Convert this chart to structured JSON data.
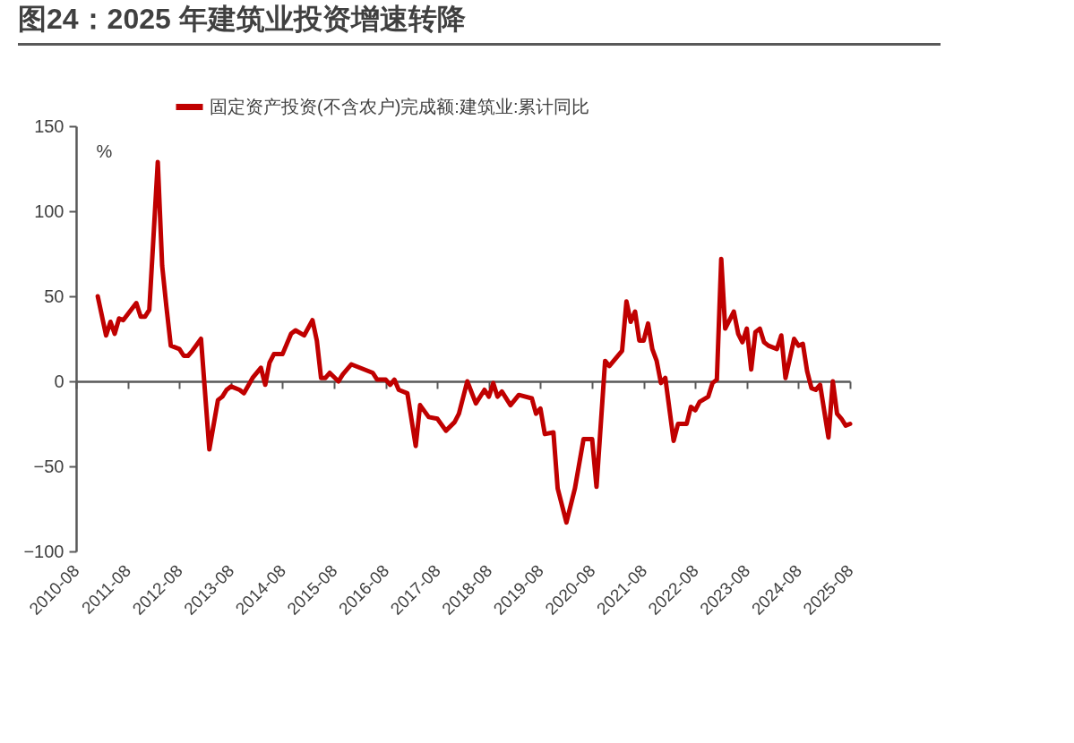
{
  "chart_data": {
    "type": "line",
    "title": "图24：2025 年建筑业投资增速转降",
    "ylabel": "%",
    "legend": "top",
    "x": [
      "2011-01",
      "2011-03",
      "2011-04",
      "2011-05",
      "2011-06",
      "2011-07",
      "2011-10",
      "2011-11",
      "2011-12",
      "2012-01",
      "2012-03",
      "2012-04",
      "2012-05",
      "2012-06",
      "2012-08",
      "2012-09",
      "2012-10",
      "2012-11",
      "2013-01",
      "2013-03",
      "2013-05",
      "2013-06",
      "2013-07",
      "2013-08",
      "2013-10",
      "2013-11",
      "2014-01",
      "2014-03",
      "2014-04",
      "2014-05",
      "2014-06",
      "2014-08",
      "2014-10",
      "2014-11",
      "2015-01",
      "2015-03",
      "2015-04",
      "2015-05",
      "2015-06",
      "2015-07",
      "2015-09",
      "2015-10",
      "2015-12",
      "2016-05",
      "2016-06",
      "2016-08",
      "2016-09",
      "2016-10",
      "2016-11",
      "2017-01",
      "2017-03",
      "2017-04",
      "2017-06",
      "2017-08",
      "2017-10",
      "2017-12",
      "2018-01",
      "2018-03",
      "2018-05",
      "2018-07",
      "2018-08",
      "2018-09",
      "2018-10",
      "2018-11",
      "2019-01",
      "2019-03",
      "2019-06",
      "2019-07",
      "2019-08",
      "2019-09",
      "2019-11",
      "2019-12",
      "2020-02",
      "2020-04",
      "2020-06",
      "2020-08",
      "2020-09",
      "2020-11",
      "2020-12",
      "2021-03",
      "2021-04",
      "2021-05",
      "2021-06",
      "2021-07",
      "2021-08",
      "2021-09",
      "2021-10",
      "2021-11",
      "2021-12",
      "2022-01",
      "2022-03",
      "2022-04",
      "2022-06",
      "2022-07",
      "2022-08",
      "2022-09",
      "2022-11",
      "2022-12",
      "2023-01",
      "2023-02",
      "2023-03",
      "2023-05",
      "2023-06",
      "2023-07",
      "2023-08",
      "2023-09",
      "2023-10",
      "2023-11",
      "2023-12",
      "2024-01",
      "2024-03",
      "2024-04",
      "2024-05",
      "2024-07",
      "2024-08",
      "2024-09",
      "2024-10",
      "2024-11",
      "2024-12",
      "2025-01",
      "2025-03",
      "2025-04",
      "2025-05",
      "2025-06",
      "2025-07",
      "2025-08"
    ],
    "series": [
      {
        "name": "固定资产投资(不含农户)完成额:建筑业:累计同比",
        "color": "#c00000",
        "values": [
          50,
          27,
          35,
          28,
          37,
          36,
          46,
          38,
          38,
          42,
          129,
          68,
          44,
          21,
          19,
          15,
          15,
          18,
          25,
          -40,
          -11,
          -9,
          -5,
          -3,
          -5,
          -7,
          2,
          8,
          -2,
          11,
          16,
          16,
          28,
          30,
          27,
          36,
          24,
          2,
          2,
          5,
          0,
          4,
          10,
          5,
          1,
          1,
          -2,
          1,
          -5,
          -7,
          -38,
          -14,
          -21,
          -22,
          -29,
          -24,
          -19,
          0,
          -13,
          -5,
          -9,
          -1,
          -9,
          -6,
          -14,
          -8,
          -10,
          -19,
          -16,
          -31,
          -30,
          -63,
          -83,
          -63,
          -34,
          -34,
          -62,
          12,
          9,
          18,
          47,
          35,
          41,
          24,
          24,
          34,
          19,
          12,
          -1,
          2,
          -35,
          -25,
          -25,
          -15,
          -17,
          -12,
          -9,
          -1,
          1,
          72,
          31,
          41,
          28,
          23,
          31,
          7,
          29,
          31,
          23,
          21,
          19,
          27,
          2,
          25,
          21,
          22,
          6,
          -4,
          -5,
          -2,
          -33,
          0,
          -19,
          -22,
          -26,
          -25
        ]
      }
    ],
    "xlim": [
      "2010-08",
      "2025-08"
    ],
    "xticks": [
      "2010-08",
      "2011-08",
      "2012-08",
      "2013-08",
      "2014-08",
      "2015-08",
      "2016-08",
      "2017-08",
      "2018-08",
      "2019-08",
      "2020-08",
      "2021-08",
      "2022-08",
      "2023-08",
      "2024-08",
      "2025-08"
    ],
    "ylim": [
      -100,
      150
    ],
    "yticks": [
      -100,
      -50,
      0,
      50,
      100,
      150
    ],
    "line_style": "solid",
    "marker": "none"
  }
}
